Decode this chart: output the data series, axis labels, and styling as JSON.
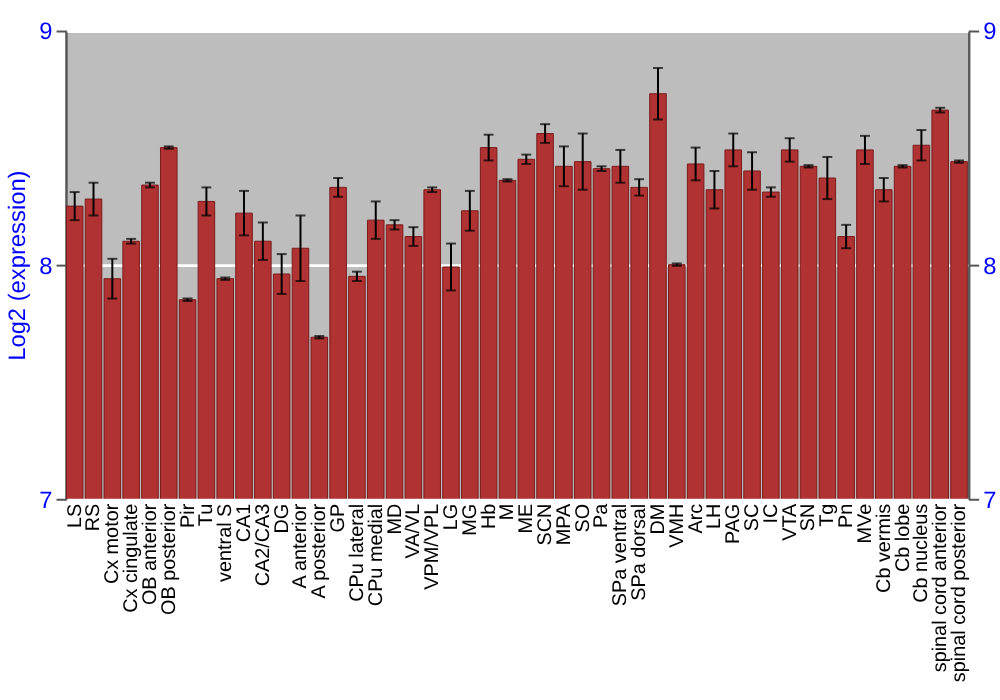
{
  "chart_data": {
    "type": "bar",
    "ylabel": "Log2 (expression)",
    "categories": [
      "LS",
      "RS",
      "Cx motor",
      "Cx cingulate",
      "OB anterior",
      "OB posterior",
      "Pir",
      "Tu",
      "ventral S",
      "CA1",
      "CA2/CA3",
      "DG",
      "A anterior",
      "A posterior",
      "GP",
      "CPu lateral",
      "CPu medial",
      "MD",
      "VA/VL",
      "VPM/VPL",
      "LG",
      "MG",
      "Hb",
      "M",
      "ME",
      "SCN",
      "MPA",
      "SO",
      "Pa",
      "SPa ventral",
      "SPa dorsal",
      "DM",
      "VMH",
      "Arc",
      "LH",
      "PAG",
      "SC",
      "IC",
      "VTA",
      "SN",
      "Tg",
      "Pn",
      "MVe",
      "Cb vermis",
      "Cb lobe",
      "Cb nucleus",
      "spinal cord anterior",
      "spinal cord posterior"
    ],
    "values": [
      8.25,
      8.28,
      7.94,
      8.1,
      8.34,
      8.5,
      7.85,
      8.27,
      7.94,
      8.22,
      8.1,
      7.96,
      8.07,
      7.69,
      8.33,
      7.95,
      8.19,
      8.17,
      8.12,
      8.32,
      7.99,
      8.23,
      8.5,
      8.36,
      8.45,
      8.56,
      8.42,
      8.44,
      8.41,
      8.42,
      8.33,
      8.73,
      8.0,
      8.43,
      8.32,
      8.49,
      8.4,
      8.31,
      8.49,
      8.42,
      8.37,
      8.12,
      8.49,
      8.32,
      8.42,
      8.51,
      8.66,
      8.44
    ],
    "errors": [
      0.06,
      0.07,
      0.085,
      0.01,
      0.01,
      0.005,
      0.005,
      0.06,
      0.005,
      0.095,
      0.08,
      0.085,
      0.14,
      0.005,
      0.04,
      0.02,
      0.08,
      0.02,
      0.04,
      0.01,
      0.1,
      0.085,
      0.055,
      0.005,
      0.02,
      0.04,
      0.085,
      0.12,
      0.01,
      0.07,
      0.035,
      0.11,
      0.005,
      0.07,
      0.08,
      0.07,
      0.08,
      0.02,
      0.05,
      0.005,
      0.09,
      0.05,
      0.06,
      0.05,
      0.005,
      0.065,
      0.01,
      0.005
    ],
    "color": "#b03232",
    "ylim": [
      7,
      9
    ],
    "yticks": [
      7,
      8,
      9
    ],
    "y2lim": [
      7,
      9
    ],
    "y2ticks": [
      7,
      8,
      9
    ],
    "grid": "y"
  }
}
